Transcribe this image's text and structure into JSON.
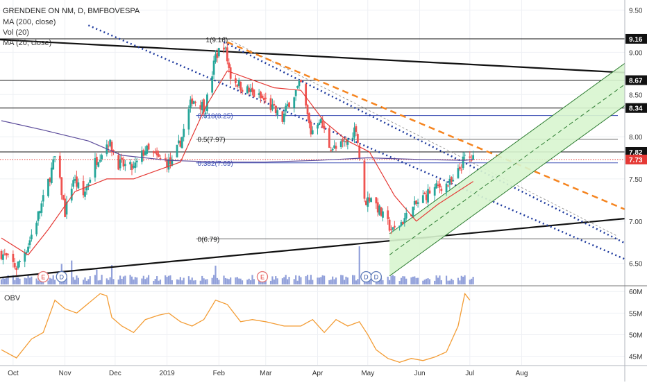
{
  "header": {
    "symbol_line": "GRENDENE ON NM, D, BMFBOVESPA",
    "studies": [
      "MA (200, close)",
      "Vol (20)",
      "MA (20, close)"
    ]
  },
  "obv_label": "OBV",
  "colors": {
    "up": "#26a69a",
    "down": "#ef5350",
    "ma200": "#5b4b9a",
    "ma20": "#e53935",
    "fib": "#3f51b5",
    "trend_orange": "#f5841f",
    "channel_dots": "#1e3a9e",
    "channel_fill": "#d8f5cf",
    "channel_line": "#2e7d32",
    "volume": "#7e8fd4",
    "obv": "#f39c34",
    "black": "#111111",
    "red_dotted": "#e53935"
  },
  "chart_data": {
    "type": "candlestick",
    "symbol": "GRENDENE ON NM",
    "interval": "D",
    "exchange": "BMFBOVESPA",
    "price_axis": {
      "ticks": [
        "6.50",
        "7.00",
        "7.50",
        "8.00",
        "8.50",
        "9.00",
        "9.50"
      ],
      "range": [
        6.25,
        9.62
      ]
    },
    "time_axis": {
      "ticks": [
        "Oct",
        "Nov",
        "Dec",
        "2019",
        "Feb",
        "Mar",
        "Apr",
        "May",
        "Jun",
        "Jul",
        "Aug"
      ]
    },
    "price_labels": [
      {
        "value": "9.16",
        "price": 9.16,
        "style": "black"
      },
      {
        "value": "8.67",
        "price": 8.67,
        "style": "black"
      },
      {
        "value": "8.34",
        "price": 8.34,
        "style": "black"
      },
      {
        "value": "7.82",
        "price": 7.82,
        "style": "black"
      },
      {
        "value": "7.73",
        "price": 7.73,
        "style": "red"
      }
    ],
    "horizontal_levels": [
      9.16,
      8.67,
      8.34,
      7.82
    ],
    "fib_levels": [
      {
        "label": "1(9.16)",
        "price": 9.16
      },
      {
        "label": "0.618(8.25)",
        "price": 8.25
      },
      {
        "label": "0.5(7.97)",
        "price": 7.97
      },
      {
        "label": "0.382(7.69)",
        "price": 7.69
      },
      {
        "label": "0(6.79)",
        "price": 6.79
      }
    ],
    "events": [
      {
        "label": "E",
        "time": "2018-10-19"
      },
      {
        "label": "D",
        "time": "2018-10-30"
      },
      {
        "label": "E",
        "time": "2019-02-27"
      },
      {
        "label": "D",
        "time": "2019-04-30"
      },
      {
        "label": "D",
        "time": "2019-05-06"
      }
    ],
    "obv_axis": {
      "ticks": [
        "45M",
        "50M",
        "55M",
        "60M"
      ],
      "range": [
        43,
        61
      ]
    },
    "series": [
      {
        "name": "MA (200, close)",
        "values": [
          [
            "2018-09-24",
            8.19
          ],
          [
            "2018-10-19",
            8.08
          ],
          [
            "2018-11-15",
            7.95
          ],
          [
            "2018-12-05",
            7.78
          ],
          [
            "2019-01-02",
            7.72
          ],
          [
            "2019-02-01",
            7.7
          ],
          [
            "2019-03-01",
            7.7
          ],
          [
            "2019-04-01",
            7.72
          ],
          [
            "2019-05-01",
            7.75
          ],
          [
            "2019-06-01",
            7.73
          ],
          [
            "2019-06-28",
            7.72
          ],
          [
            "2019-07-03",
            7.73
          ]
        ]
      },
      {
        "name": "MA (20, close)",
        "values": [
          [
            "2018-09-24",
            6.8
          ],
          [
            "2018-10-10",
            6.6
          ],
          [
            "2018-10-22",
            6.9
          ],
          [
            "2018-11-07",
            7.35
          ],
          [
            "2018-11-26",
            7.5
          ],
          [
            "2018-12-12",
            7.5
          ],
          [
            "2019-01-09",
            7.7
          ],
          [
            "2019-01-24",
            8.35
          ],
          [
            "2019-02-06",
            8.78
          ],
          [
            "2019-02-20",
            8.68
          ],
          [
            "2019-03-06",
            8.58
          ],
          [
            "2019-03-22",
            8.55
          ],
          [
            "2019-04-05",
            8.18
          ],
          [
            "2019-04-19",
            7.95
          ],
          [
            "2019-05-02",
            7.82
          ],
          [
            "2019-05-17",
            7.3
          ],
          [
            "2019-05-30",
            7.0
          ],
          [
            "2019-06-12",
            7.2
          ],
          [
            "2019-06-26",
            7.38
          ],
          [
            "2019-07-03",
            7.47
          ]
        ]
      },
      {
        "name": "OBV",
        "values": [
          [
            "2018-09-24",
            46.5
          ],
          [
            "2018-10-03",
            44.6
          ],
          [
            "2018-10-12",
            49.0
          ],
          [
            "2018-10-19",
            50.5
          ],
          [
            "2018-10-26",
            58.0
          ],
          [
            "2018-11-01",
            56.0
          ],
          [
            "2018-11-08",
            55.0
          ],
          [
            "2018-11-22",
            59.5
          ],
          [
            "2018-11-26",
            59.0
          ],
          [
            "2018-11-29",
            54.0
          ],
          [
            "2018-12-05",
            52.0
          ],
          [
            "2018-12-12",
            50.5
          ],
          [
            "2018-12-19",
            53.5
          ],
          [
            "2018-12-27",
            54.5
          ],
          [
            "2019-01-02",
            55.0
          ],
          [
            "2019-01-09",
            53.0
          ],
          [
            "2019-01-16",
            52.0
          ],
          [
            "2019-01-23",
            53.5
          ],
          [
            "2019-01-30",
            58.0
          ],
          [
            "2019-02-06",
            57.0
          ],
          [
            "2019-02-14",
            53.0
          ],
          [
            "2019-02-21",
            53.5
          ],
          [
            "2019-03-01",
            53.0
          ],
          [
            "2019-03-12",
            52.0
          ],
          [
            "2019-03-22",
            52.0
          ],
          [
            "2019-03-29",
            53.5
          ],
          [
            "2019-04-05",
            50.5
          ],
          [
            "2019-04-12",
            53.5
          ],
          [
            "2019-04-19",
            52.0
          ],
          [
            "2019-04-26",
            53.0
          ],
          [
            "2019-05-01",
            50.0
          ],
          [
            "2019-05-06",
            46.5
          ],
          [
            "2019-05-13",
            44.5
          ],
          [
            "2019-05-20",
            43.6
          ],
          [
            "2019-05-27",
            44.5
          ],
          [
            "2019-06-03",
            44.0
          ],
          [
            "2019-06-10",
            44.8
          ],
          [
            "2019-06-17",
            46.0
          ],
          [
            "2019-06-24",
            52.0
          ],
          [
            "2019-06-28",
            59.5
          ],
          [
            "2019-07-01",
            58.0
          ]
        ]
      },
      {
        "name": "Vol (20)",
        "values": [
          [
            "2018-09-24",
            0.9
          ],
          [
            "2018-10-05",
            1.0
          ],
          [
            "2018-10-30",
            3.6
          ],
          [
            "2018-11-05",
            4.2
          ],
          [
            "2018-11-20",
            2.6
          ],
          [
            "2018-11-29",
            3.4
          ],
          [
            "2018-12-20",
            1.2
          ],
          [
            "2019-01-09",
            1.3
          ],
          [
            "2019-01-30",
            3.3
          ],
          [
            "2019-02-19",
            1.0
          ],
          [
            "2019-04-26",
            6.7
          ],
          [
            "2019-05-02",
            2.2
          ],
          [
            "2019-06-05",
            1.0
          ],
          [
            "2019-06-28",
            1.6
          ]
        ]
      }
    ]
  }
}
